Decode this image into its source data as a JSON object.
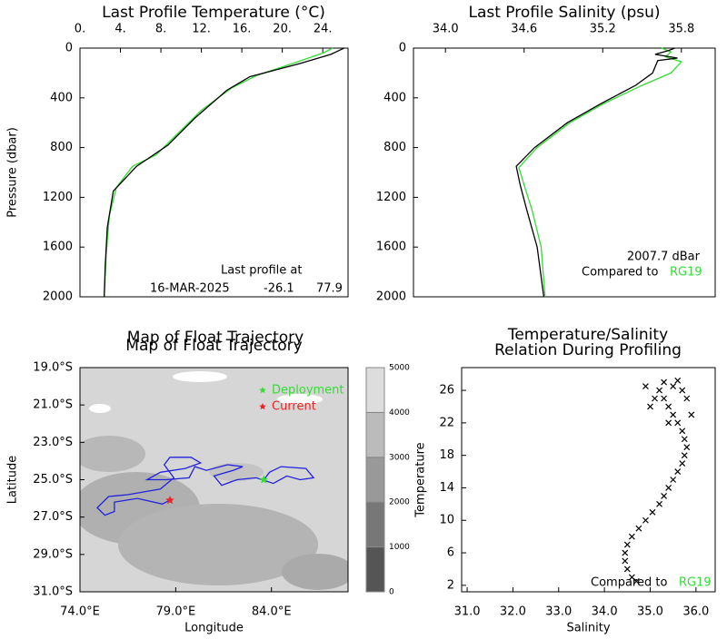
{
  "chart_data": [
    {
      "type": "profile",
      "title": "Last Profile Temperature (°C)",
      "ylabel": "Pressure (dbar)",
      "x_axis": "top",
      "y_inverted": true,
      "xlim": [
        0,
        26.5
      ],
      "ylim": [
        0,
        2000
      ],
      "xticks": [
        {
          "value": 0,
          "label": "0."
        },
        {
          "value": 4,
          "label": "4."
        },
        {
          "value": 8,
          "label": "8."
        },
        {
          "value": 12,
          "label": "12."
        },
        {
          "value": 16,
          "label": "16."
        },
        {
          "value": 20,
          "label": "20."
        },
        {
          "value": 24,
          "label": "24."
        }
      ],
      "yticks": [
        0,
        400,
        800,
        1200,
        1600,
        2000
      ],
      "series": [
        {
          "color": "#33dd33",
          "x": [
            25.0,
            24.0,
            21.5,
            17.5,
            15.0,
            12.0,
            9.5,
            7.5,
            5.2,
            3.6,
            2.9,
            2.6,
            2.4
          ],
          "y": [
            0,
            40,
            110,
            220,
            320,
            500,
            700,
            860,
            950,
            1120,
            1350,
            1650,
            2000
          ]
        },
        {
          "color": "#000000",
          "x": [
            26.1,
            25.6,
            24.8,
            21.7,
            16.8,
            14.5,
            11.4,
            8.7,
            5.6,
            3.3,
            2.7,
            2.5,
            2.4
          ],
          "y": [
            0,
            20,
            50,
            125,
            230,
            340,
            560,
            780,
            950,
            1150,
            1440,
            1750,
            2000
          ]
        }
      ],
      "annotations": [
        "Last profile at",
        "16-MAR-2025",
        "-26.1",
        "77.9"
      ]
    },
    {
      "type": "profile",
      "title": "Last Profile Salinity (psu)",
      "x_axis": "top",
      "y_inverted": true,
      "xlim": [
        33.756,
        36.058
      ],
      "ylim": [
        0,
        2000
      ],
      "xticks": [
        {
          "value": 34.0,
          "label": "34.0"
        },
        34.6,
        35.2,
        35.8
      ],
      "yticks": [
        0,
        400,
        800,
        1200,
        1600,
        2000
      ],
      "series": [
        {
          "color": "#33dd33",
          "x": [
            35.65,
            35.72,
            35.68,
            35.8,
            35.72,
            35.5,
            35.2,
            34.95,
            34.7,
            34.56,
            34.6,
            34.66,
            34.73,
            34.76
          ],
          "y": [
            0,
            30,
            70,
            110,
            200,
            300,
            450,
            600,
            800,
            960,
            1100,
            1300,
            1600,
            2000
          ]
        },
        {
          "color": "#000000",
          "x": [
            35.75,
            35.7,
            35.6,
            35.77,
            35.62,
            35.58,
            35.45,
            35.18,
            34.93,
            34.68,
            34.54,
            34.57,
            34.62,
            34.7,
            34.75
          ],
          "y": [
            0,
            20,
            50,
            80,
            100,
            200,
            300,
            450,
            600,
            800,
            950,
            1100,
            1300,
            1600,
            2000
          ]
        }
      ],
      "annotations": [
        "2007.7 dBar",
        "Compared to"
      ],
      "reference": {
        "text": "RG19",
        "color": "#33dd33"
      }
    },
    {
      "type": "map",
      "title": "Map of Float Trajectory",
      "xlabel": "Longitude",
      "ylabel": "Latitude",
      "xlim": [
        74,
        88
      ],
      "ylim": [
        -31,
        -19
      ],
      "xticks": [
        {
          "value": 74,
          "label": "74.0°E"
        },
        {
          "value": 79,
          "label": "79.0°E"
        },
        {
          "value": 84,
          "label": "84.0°E"
        }
      ],
      "yticks": [
        {
          "value": -19,
          "label": "19.0°S"
        },
        {
          "value": -21,
          "label": "21.0°S"
        },
        {
          "value": -23,
          "label": "23.0°S"
        },
        {
          "value": -25,
          "label": "25.0°S"
        },
        {
          "value": -27,
          "label": "27.0°S"
        },
        {
          "value": -29,
          "label": "29.0°S"
        },
        {
          "value": -31,
          "label": "31.0°S"
        }
      ],
      "series": [
        {
          "color": "#2222dd",
          "x": [
            83.6,
            83.9,
            84.5,
            85.8,
            86.2,
            85.5,
            84.8,
            84.1,
            83.2,
            82.2,
            81.4,
            81.0,
            82.0,
            82.5,
            81.7,
            80.6,
            80.0,
            79.7,
            78.5,
            77.5,
            78.2,
            79.5,
            80.3,
            79.8,
            78.7,
            78.4,
            78.9,
            78.2,
            76.5,
            75.5,
            74.9,
            75.3,
            75.8,
            75.8,
            77.0,
            78.3,
            78.7
          ],
          "y": [
            -25.0,
            -24.6,
            -24.3,
            -24.4,
            -24.9,
            -25.0,
            -24.8,
            -25.2,
            -24.9,
            -25.0,
            -25.3,
            -24.8,
            -24.5,
            -24.3,
            -24.2,
            -24.5,
            -24.3,
            -24.9,
            -25.0,
            -25.0,
            -24.6,
            -24.4,
            -24.1,
            -23.8,
            -23.8,
            -24.2,
            -24.9,
            -25.5,
            -25.8,
            -25.9,
            -26.5,
            -26.9,
            -26.7,
            -26.2,
            -26.0,
            -26.3,
            -26.1
          ]
        }
      ],
      "markers": [
        {
          "name": "Deployment",
          "color": "#33dd33",
          "x": 83.6,
          "y": -25.0
        },
        {
          "name": "Current",
          "color": "#ee2222",
          "x": 78.7,
          "y": -26.1
        }
      ],
      "colorbar": {
        "ticks": [
          0,
          1000,
          2000,
          3000,
          4000,
          5000
        ],
        "colors": [
          "#555555",
          "#777777",
          "#999999",
          "#bbbbbb",
          "#dddddd"
        ]
      }
    },
    {
      "type": "scatter",
      "title": [
        "Temperature/Salinity",
        "Relation During Profiling"
      ],
      "xlabel": "Salinity",
      "ylabel": "Temperature",
      "xlim": [
        30.88,
        36.42
      ],
      "ylim": [
        1.2,
        28.8
      ],
      "xticks": [
        {
          "value": 31,
          "label": "31.0"
        },
        {
          "value": 32,
          "label": "32.0"
        },
        {
          "value": 33,
          "label": "33.0"
        },
        {
          "value": 34,
          "label": "34.0"
        },
        {
          "value": 35,
          "label": "35.0"
        },
        {
          "value": 36,
          "label": "36.0"
        }
      ],
      "yticks": [
        2,
        6,
        10,
        14,
        18,
        22,
        26
      ],
      "series": [
        {
          "color": "#000000",
          "marker": "x",
          "x": [
            34.7,
            34.6,
            34.5,
            34.45,
            34.45,
            34.5,
            34.6,
            34.75,
            34.9,
            35.05,
            35.2,
            35.3,
            35.4,
            35.5,
            35.6,
            35.7,
            35.75,
            35.8,
            35.75,
            35.7,
            35.6,
            35.5,
            35.4,
            35.3,
            35.2,
            35.5,
            35.7,
            35.8,
            35.1,
            35.0,
            35.9,
            35.3,
            35.6,
            34.9,
            35.4
          ],
          "y": [
            2.5,
            3,
            4,
            5,
            6,
            7,
            8,
            9,
            10,
            11,
            12,
            13,
            14,
            15,
            16,
            17,
            18,
            19,
            20,
            21,
            22,
            23,
            24,
            25,
            26,
            26.5,
            26,
            25,
            25,
            24,
            23,
            27,
            27.2,
            26.5,
            22
          ]
        }
      ],
      "annotations": [
        "Compared to"
      ],
      "reference": {
        "text": "RG19",
        "color": "#33dd33"
      }
    }
  ]
}
